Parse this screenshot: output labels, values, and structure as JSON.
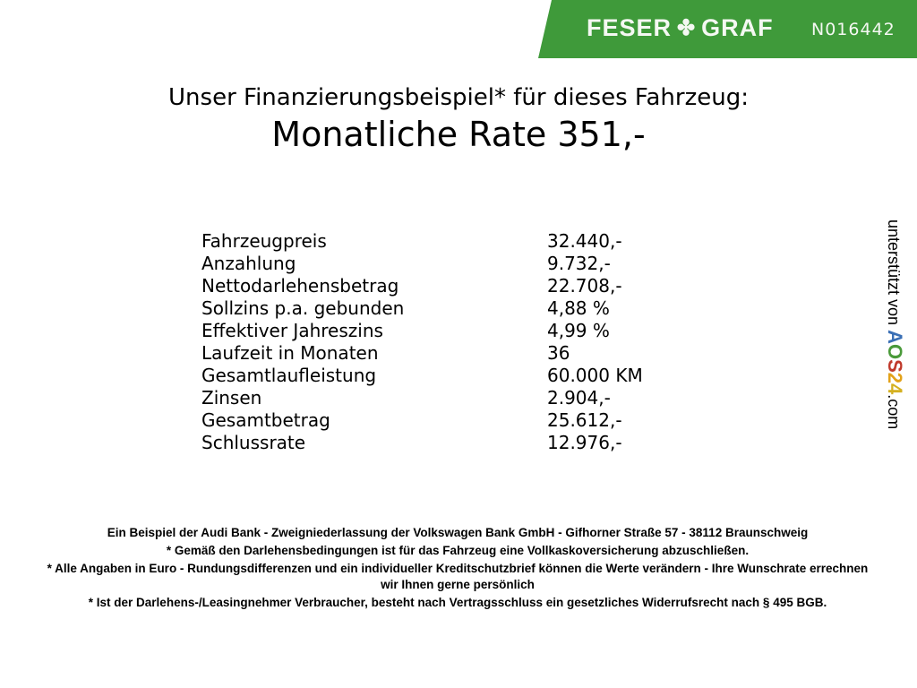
{
  "header": {
    "brand": "FESER GRAF",
    "brand_icon": "clover-icon",
    "vehicle_code": "N016442",
    "banner_color": "#3f9a3a"
  },
  "title": "Unser Finanzierungsbeispiel* für dieses Fahrzeug:",
  "subtitle": "Monatliche Rate 351,-",
  "rows": [
    {
      "label": "Fahrzeugpreis",
      "value": "32.440,-"
    },
    {
      "label": "Anzahlung",
      "value": "9.732,-"
    },
    {
      "label": "Nettodarlehensbetrag",
      "value": "22.708,-"
    },
    {
      "label": "Sollzins p.a. gebunden",
      "value": "4,88 %"
    },
    {
      "label": "Effektiver Jahreszins",
      "value": "4,99 %"
    },
    {
      "label": "Laufzeit in Monaten",
      "value": "36"
    },
    {
      "label": "Gesamtlaufleistung",
      "value": "60.000 KM"
    },
    {
      "label": "Zinsen",
      "value": "2.904,-"
    },
    {
      "label": "Gesamtbetrag",
      "value": "25.612,-"
    },
    {
      "label": "Schlussrate",
      "value": "12.976,-"
    }
  ],
  "side": {
    "text": "unterstützt von",
    "logo": [
      "A",
      "O",
      "S",
      "2",
      "4"
    ],
    "logo_colors": [
      "#3a6fb5",
      "#4a9a3a",
      "#c0392b",
      "#e3a21a",
      "#d4b020"
    ],
    "suffix": ".com"
  },
  "footer": [
    "Ein Beispiel der Audi Bank - Zweigniederlassung der Volkswagen Bank GmbH - Gifhorner Straße 57 - 38112 Braunschweig",
    "* Gemäß den Darlehensbedingungen ist für das Fahrzeug eine Vollkaskoversicherung abzuschließen.",
    "* Alle Angaben in Euro - Rundungsdifferenzen und ein individueller Kreditschutzbrief können die Werte verändern - Ihre Wunschrate errechnen wir Ihnen gerne persönlich",
    "* Ist der Darlehens-/Leasingnehmer Verbraucher, besteht nach Vertragsschluss ein gesetzliches Widerrufsrecht nach § 495 BGB."
  ]
}
